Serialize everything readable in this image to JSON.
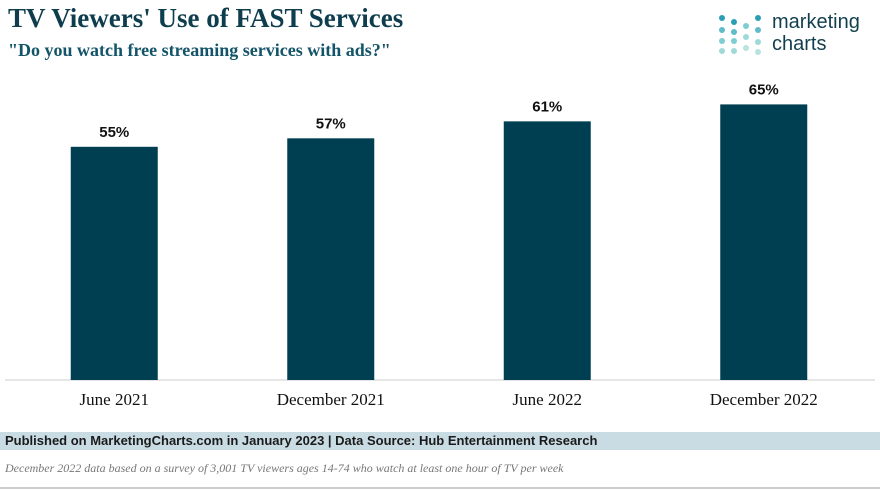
{
  "chart_data": {
    "type": "bar",
    "title": "TV Viewers' Use of FAST Services",
    "subtitle": "\"Do you watch free streaming services with ads?\"",
    "categories": [
      "June 2021",
      "December 2021",
      "June 2022",
      "December 2022"
    ],
    "values": [
      55,
      57,
      61,
      65
    ],
    "value_labels": [
      "55%",
      "57%",
      "61%",
      "65%"
    ],
    "color": "#003f52",
    "source": "Published on MarketingCharts.com in January 2023 | Data Source: Hub Entertainment Research",
    "note": "December 2022 data based on a survey of 3,001 TV viewers ages 14-74 who watch at least one hour of TV per week",
    "logo": [
      "marketing",
      "charts"
    ]
  }
}
